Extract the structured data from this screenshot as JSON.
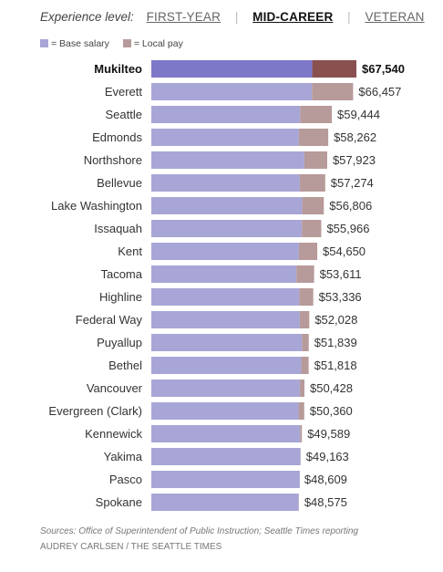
{
  "header": {
    "experience_label": "Experience level:",
    "tabs": [
      "FIRST-YEAR",
      "MID-CAREER",
      "VETERAN"
    ],
    "active_tab": "MID-CAREER"
  },
  "legend": {
    "base_label": "= Base salary",
    "local_label": "= Local pay"
  },
  "colors": {
    "base": "#a8a6d6",
    "local": "#b79a9a",
    "base_highlight": "#7d78c8",
    "local_highlight": "#8a5050"
  },
  "chart_data": {
    "type": "bar",
    "stacked": true,
    "orientation": "horizontal",
    "highlight": "Mukilteo",
    "categories": [
      "Mukilteo",
      "Everett",
      "Seattle",
      "Edmonds",
      "Northshore",
      "Bellevue",
      "Lake Washington",
      "Issaquah",
      "Kent",
      "Tacoma",
      "Highline",
      "Federal Way",
      "Puyallup",
      "Bethel",
      "Vancouver",
      "Evergreen (Clark)",
      "Kennewick",
      "Yakima",
      "Pasco",
      "Spokane"
    ],
    "series": [
      {
        "name": "Base salary",
        "values": [
          53000,
          52900,
          49000,
          48600,
          50400,
          48900,
          49700,
          49600,
          48600,
          47800,
          48700,
          48900,
          49600,
          49400,
          48900,
          48500,
          49000,
          49100,
          48900,
          48500
        ]
      },
      {
        "name": "Local pay",
        "values": [
          14540,
          13557,
          10444,
          9662,
          7523,
          8374,
          7106,
          6366,
          6050,
          5811,
          4636,
          3128,
          2239,
          2418,
          1528,
          1860,
          589,
          63,
          -291,
          75
        ]
      }
    ],
    "totals": [
      67540,
      66457,
      59444,
      58262,
      57923,
      57274,
      56806,
      55966,
      54650,
      53611,
      53336,
      52028,
      51839,
      51818,
      50428,
      50360,
      49589,
      49163,
      48609,
      48575
    ],
    "total_labels": [
      "$67,540",
      "$66,457",
      "$59,444",
      "$58,262",
      "$57,923",
      "$57,274",
      "$56,806",
      "$55,966",
      "$54,650",
      "$53,611",
      "$53,336",
      "$52,028",
      "$51,839",
      "$51,818",
      "$50,428",
      "$50,360",
      "$49,589",
      "$49,163",
      "$48,609",
      "$48,575"
    ],
    "xlim": [
      0,
      67540
    ]
  },
  "footer": {
    "source": "Sources: Office of Superintendent of Public Instruction; Seattle Times reporting",
    "credit": "AUDREY CARLSEN / THE SEATTLE TIMES"
  }
}
